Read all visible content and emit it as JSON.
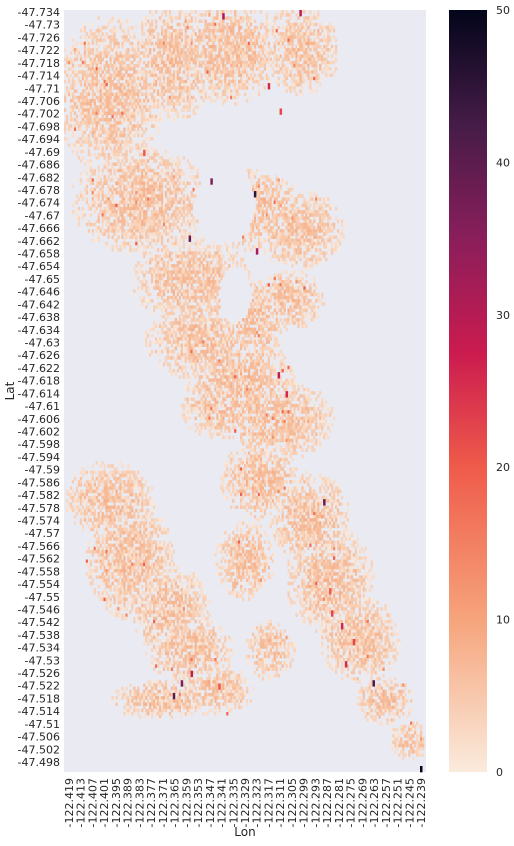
{
  "chart_data": {
    "type": "heatmap",
    "title": "",
    "xlabel": "Lon",
    "ylabel": "Lat",
    "grid": false,
    "colorbar": {
      "range": [
        0,
        50
      ],
      "ticks": [
        0,
        10,
        20,
        30,
        40,
        50
      ],
      "colormap": "rocket_r",
      "low_color": "#faebdd",
      "high_color": "#03051a"
    },
    "x_ticks": [
      "-122.419",
      "-122.413",
      "-122.407",
      "-122.401",
      "-122.395",
      "-122.389",
      "-122.383",
      "-122.377",
      "-122.371",
      "-122.365",
      "-122.359",
      "-122.353",
      "-122.347",
      "-122.341",
      "-122.335",
      "-122.329",
      "-122.323",
      "-122.317",
      "-122.311",
      "-122.305",
      "-122.299",
      "-122.293",
      "-122.287",
      "-122.281",
      "-122.275",
      "-122.269",
      "-122.263",
      "-122.257",
      "-122.251",
      "-122.245",
      "-122.239"
    ],
    "y_ticks": [
      "-47.734",
      "-47.73",
      "-47.726",
      "-47.722",
      "-47.718",
      "-47.714",
      "-47.71",
      "-47.706",
      "-47.702",
      "-47.698",
      "-47.694",
      "-47.69",
      "-47.686",
      "-47.682",
      "-47.678",
      "-47.674",
      "-47.67",
      "-47.666",
      "-47.662",
      "-47.658",
      "-47.654",
      "-47.65",
      "-47.646",
      "-47.642",
      "-47.638",
      "-47.634",
      "-47.63",
      "-47.626",
      "-47.622",
      "-47.618",
      "-47.614",
      "-47.61",
      "-47.606",
      "-47.602",
      "-47.598",
      "-47.594",
      "-47.59",
      "-47.586",
      "-47.582",
      "-47.578",
      "-47.574",
      "-47.57",
      "-47.566",
      "-47.562",
      "-47.558",
      "-47.554",
      "-47.55",
      "-47.546",
      "-47.542",
      "-47.538",
      "-47.534",
      "-47.53",
      "-47.526",
      "-47.522",
      "-47.518",
      "-47.514",
      "-47.51",
      "-47.506",
      "-47.502",
      "-47.498"
    ],
    "x_range": [
      -122.419,
      -122.239
    ],
    "y_range": [
      -47.734,
      -47.496
    ],
    "cell_lon_step": 0.001,
    "cell_lat_step": 0.001,
    "hotspots": [
      {
        "lon": -122.345,
        "lat": -47.681,
        "value": 35
      },
      {
        "lon": -122.339,
        "lat": -47.733,
        "value": 30
      },
      {
        "lon": -122.3,
        "lat": -47.734,
        "value": 28
      },
      {
        "lon": -122.316,
        "lat": -47.711,
        "value": 25
      },
      {
        "lon": -122.31,
        "lat": -47.703,
        "value": 22
      },
      {
        "lon": -122.323,
        "lat": -47.677,
        "value": 45
      },
      {
        "lon": -122.356,
        "lat": -47.663,
        "value": 38
      },
      {
        "lon": -122.322,
        "lat": -47.659,
        "value": 30
      },
      {
        "lon": -122.379,
        "lat": -47.69,
        "value": 20
      },
      {
        "lon": -122.311,
        "lat": -47.62,
        "value": 28
      },
      {
        "lon": -122.307,
        "lat": -47.614,
        "value": 25
      },
      {
        "lon": -122.288,
        "lat": -47.58,
        "value": 38
      },
      {
        "lon": -122.285,
        "lat": -47.552,
        "value": 20
      },
      {
        "lon": -122.284,
        "lat": -47.545,
        "value": 22
      },
      {
        "lon": -122.279,
        "lat": -47.541,
        "value": 25
      },
      {
        "lon": -122.273,
        "lat": -47.536,
        "value": 22
      },
      {
        "lon": -122.263,
        "lat": -47.523,
        "value": 42
      },
      {
        "lon": -122.277,
        "lat": -47.529,
        "value": 25
      },
      {
        "lon": -122.355,
        "lat": -47.526,
        "value": 28
      },
      {
        "lon": -122.36,
        "lat": -47.523,
        "value": 35
      },
      {
        "lon": -122.341,
        "lat": -47.522,
        "value": 20
      },
      {
        "lon": -122.364,
        "lat": -47.519,
        "value": 40
      },
      {
        "lon": -122.239,
        "lat": -47.496,
        "value": 50
      }
    ]
  }
}
